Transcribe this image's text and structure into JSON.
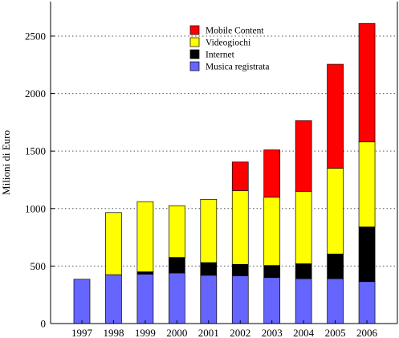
{
  "chart_data": {
    "type": "bar",
    "stacked": true,
    "title": "",
    "xlabel": "",
    "ylabel": "Milioni di Euro",
    "ylim": [
      0,
      2800
    ],
    "yticks": [
      0,
      500,
      1000,
      1500,
      2000,
      2500
    ],
    "grid": "horizontal dotted",
    "legend_position": "top-center",
    "categories": [
      "1997",
      "1998",
      "1999",
      "2000",
      "2001",
      "2002",
      "2003",
      "2004",
      "2005",
      "2006"
    ],
    "series": [
      {
        "name": "Musica registrata",
        "color": "#6666ff",
        "values": [
          385,
          425,
          430,
          440,
          420,
          415,
          400,
          390,
          390,
          365
        ]
      },
      {
        "name": "Internet",
        "color": "#000000",
        "values": [
          0,
          0,
          20,
          135,
          110,
          100,
          105,
          130,
          215,
          475
        ]
      },
      {
        "name": "Videogiochi",
        "color": "#ffff00",
        "values": [
          0,
          540,
          610,
          450,
          550,
          640,
          595,
          630,
          745,
          740
        ]
      },
      {
        "name": "Mobile Content",
        "color": "#ff0000",
        "values": [
          0,
          0,
          0,
          0,
          0,
          250,
          410,
          615,
          905,
          1030
        ]
      }
    ],
    "legend_order": [
      "Mobile Content",
      "Videogiochi",
      "Internet",
      "Musica registrata"
    ]
  }
}
